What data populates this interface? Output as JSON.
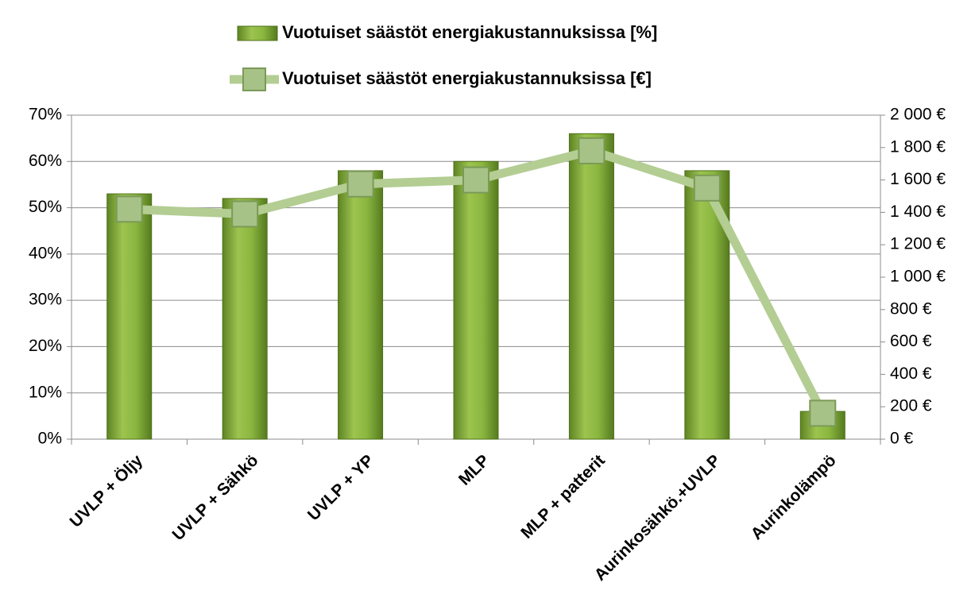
{
  "chart_data": {
    "type": "bar+line",
    "categories": [
      "UVLP + Öljy",
      "UVLP + Sähkö",
      "UVLP + YP",
      "MLP",
      "MLP + patterit",
      "Aurinkosähkö.+UVLP",
      "Aurinkolämpö"
    ],
    "series": [
      {
        "name": "Vuotuiset säästöt energiakustannuksissa [%]",
        "type": "bar",
        "color": "#86b03a",
        "values": [
          53,
          52,
          58,
          60,
          66,
          58,
          6
        ]
      },
      {
        "name": "Vuotuiset säästöt energiakustannuksissa [€]",
        "type": "line",
        "axis": "y2",
        "color": "#b3cd93",
        "values": [
          1420,
          1390,
          1575,
          1600,
          1780,
          1550,
          160
        ]
      }
    ],
    "ylim": [
      0,
      70
    ],
    "yticks": [
      {
        "value": 0,
        "label": "0%"
      },
      {
        "value": 10,
        "label": "10%"
      },
      {
        "value": 20,
        "label": "20%"
      },
      {
        "value": 30,
        "label": "30%"
      },
      {
        "value": 40,
        "label": "40%"
      },
      {
        "value": 50,
        "label": "50%"
      },
      {
        "value": 60,
        "label": "60%"
      },
      {
        "value": 70,
        "label": "70%"
      }
    ],
    "y2lim": [
      0,
      2000
    ],
    "y2ticks": [
      {
        "value": 0,
        "label": "0 €"
      },
      {
        "value": 200,
        "label": "200 €"
      },
      {
        "value": 400,
        "label": "400 €"
      },
      {
        "value": 600,
        "label": "600 €"
      },
      {
        "value": 800,
        "label": "800 €"
      },
      {
        "value": 1000,
        "label": "1 000 €"
      },
      {
        "value": 1200,
        "label": "1 200 €"
      },
      {
        "value": 1400,
        "label": "1 400 €"
      },
      {
        "value": 1600,
        "label": "1 600 €"
      },
      {
        "value": 1800,
        "label": "1 800 €"
      },
      {
        "value": 2000,
        "label": "2 000 €"
      }
    ],
    "grid": true,
    "legend": "top"
  }
}
